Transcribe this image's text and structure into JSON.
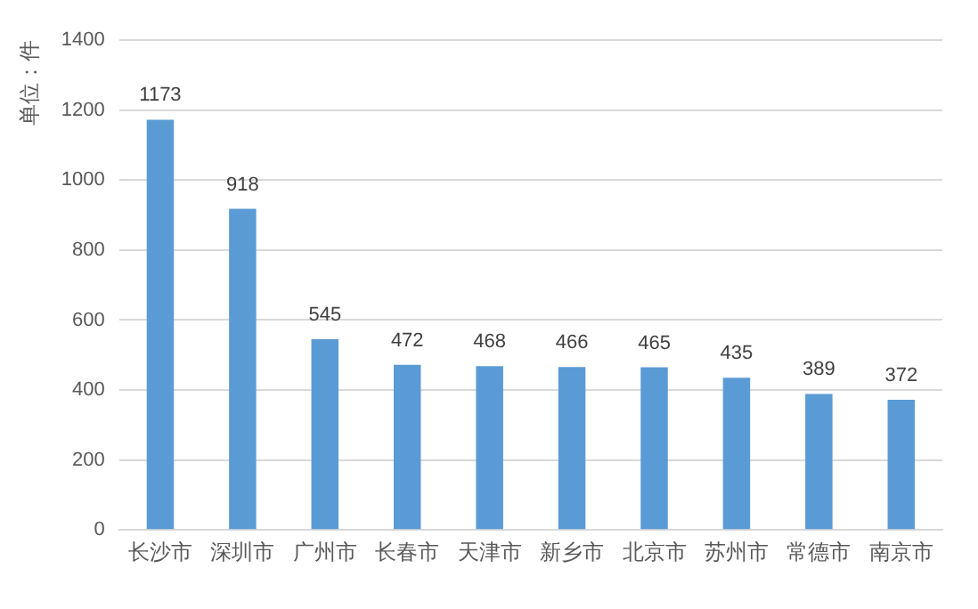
{
  "chart_data": {
    "type": "bar",
    "ylabel": "单位：件",
    "categories": [
      "长沙市",
      "深圳市",
      "广州市",
      "长春市",
      "天津市",
      "新乡市",
      "北京市",
      "苏州市",
      "常德市",
      "南京市"
    ],
    "values": [
      1173,
      918,
      545,
      472,
      468,
      466,
      465,
      435,
      389,
      372
    ],
    "color": "#5b9bd5",
    "ylim": [
      0,
      1400
    ],
    "yticks": [
      0,
      200,
      400,
      600,
      800,
      1000,
      1200,
      1400
    ],
    "grid": "y",
    "data_labels": true,
    "legend": false
  }
}
